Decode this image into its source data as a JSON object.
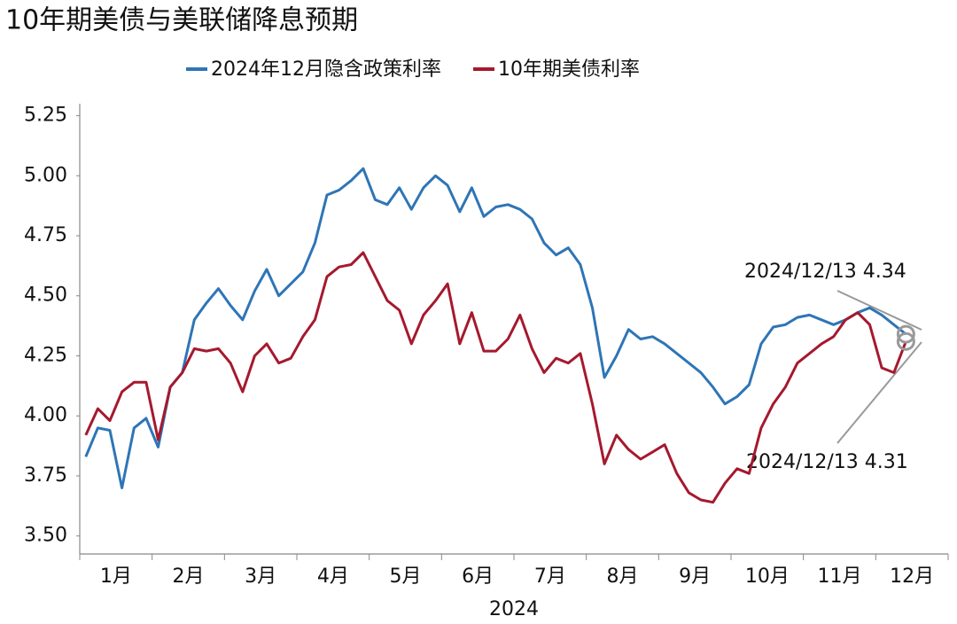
{
  "chart_data": {
    "type": "line",
    "title": "10年期美债与美联储降息预期",
    "x_label": "2024",
    "categories": [
      null,
      null,
      "1月",
      null,
      null,
      null,
      null,
      null,
      "2月",
      null,
      null,
      null,
      null,
      null,
      "3月",
      null,
      null,
      null,
      null,
      null,
      "4月",
      null,
      null,
      null,
      null,
      null,
      "5月",
      null,
      null,
      null,
      null,
      null,
      "6月",
      null,
      null,
      null,
      null,
      null,
      "7月",
      null,
      null,
      null,
      null,
      null,
      "8月",
      null,
      null,
      null,
      null,
      null,
      "9月",
      null,
      null,
      null,
      null,
      null,
      "10月",
      null,
      null,
      null,
      null,
      null,
      "11月",
      null,
      null,
      null,
      null,
      null,
      "12月"
    ],
    "series": [
      {
        "name": "2024年12月隐含政策利率",
        "color": "#2e75b6",
        "values": [
          3.83,
          3.95,
          3.94,
          3.7,
          3.95,
          3.99,
          3.87,
          4.12,
          4.18,
          4.4,
          4.47,
          4.53,
          4.46,
          4.4,
          4.52,
          4.61,
          4.5,
          4.55,
          4.6,
          4.72,
          4.92,
          4.94,
          4.98,
          5.03,
          4.9,
          4.88,
          4.95,
          4.86,
          4.95,
          5.0,
          4.96,
          4.85,
          4.95,
          4.83,
          4.87,
          4.88,
          4.86,
          4.82,
          4.72,
          4.67,
          4.7,
          4.63,
          4.45,
          4.16,
          4.25,
          4.36,
          4.32,
          4.33,
          4.3,
          4.26,
          4.22,
          4.18,
          4.12,
          4.05,
          4.08,
          4.13,
          4.3,
          4.37,
          4.38,
          4.41,
          4.42,
          4.4,
          4.38,
          4.4,
          4.43,
          4.45,
          4.42,
          4.38,
          4.34
        ]
      },
      {
        "name": "10年期美债利率",
        "color": "#a5192e",
        "values": [
          3.92,
          4.03,
          3.98,
          4.1,
          4.14,
          4.14,
          3.9,
          4.12,
          4.18,
          4.28,
          4.27,
          4.28,
          4.22,
          4.1,
          4.25,
          4.3,
          4.22,
          4.24,
          4.33,
          4.4,
          4.58,
          4.62,
          4.63,
          4.68,
          4.58,
          4.48,
          4.44,
          4.3,
          4.42,
          4.48,
          4.55,
          4.3,
          4.43,
          4.27,
          4.27,
          4.32,
          4.42,
          4.28,
          4.18,
          4.24,
          4.22,
          4.26,
          4.05,
          3.8,
          3.92,
          3.86,
          3.82,
          3.85,
          3.88,
          3.76,
          3.68,
          3.65,
          3.64,
          3.72,
          3.78,
          3.76,
          3.95,
          4.05,
          4.12,
          4.22,
          4.26,
          4.3,
          4.33,
          4.4,
          4.43,
          4.38,
          4.2,
          4.18,
          4.31
        ]
      }
    ],
    "annotations": [
      "2024/12/13 4.34",
      "2024/12/13 4.31"
    ],
    "ylim": [
      3.425,
      5.3
    ],
    "yticks": [
      {
        "value": 3.5,
        "label": "3.50"
      },
      3.75,
      {
        "value": 4,
        "label": "4.00"
      },
      4.25,
      {
        "value": 4.5,
        "label": "4.50"
      },
      4.75,
      {
        "value": 5,
        "label": "5.00"
      },
      5.25
    ],
    "grid": false
  }
}
